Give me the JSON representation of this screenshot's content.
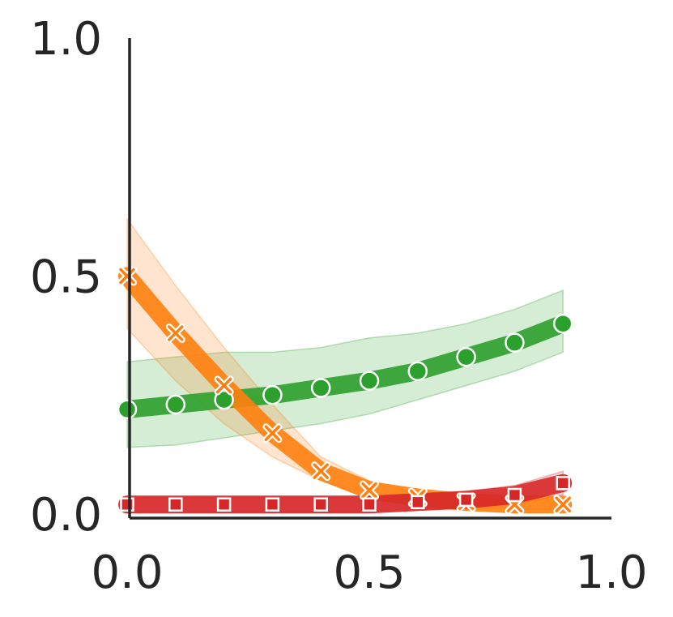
{
  "chart_data": {
    "type": "line",
    "x": [
      0.0,
      0.1,
      0.2,
      0.3,
      0.4,
      0.5,
      0.6,
      0.7,
      0.8,
      0.9
    ],
    "xlim": [
      0.0,
      1.0
    ],
    "ylim": [
      0.0,
      1.0
    ],
    "xticks": [
      "0.0",
      "0.5",
      "1.0"
    ],
    "yticks": [
      "0.0",
      "0.5",
      "1.0"
    ],
    "grid": false,
    "series": [
      {
        "color": "#ff7f0e",
        "marker": "x",
        "values": [
          0.5,
          0.38,
          0.27,
          0.17,
          0.09,
          0.05,
          0.035,
          0.025,
          0.02,
          0.02
        ],
        "lower": [
          0.39,
          0.28,
          0.19,
          0.12,
          0.07,
          0.035,
          0.025,
          0.015,
          0.01,
          0.01
        ],
        "upper": [
          0.62,
          0.48,
          0.35,
          0.23,
          0.12,
          0.07,
          0.045,
          0.035,
          0.03,
          0.03
        ]
      },
      {
        "color": "#2ca02c",
        "marker": "circle",
        "values": [
          0.22,
          0.23,
          0.24,
          0.25,
          0.265,
          0.28,
          0.3,
          0.33,
          0.36,
          0.4
        ],
        "lower": [
          0.14,
          0.145,
          0.16,
          0.175,
          0.19,
          0.21,
          0.24,
          0.27,
          0.3,
          0.34
        ],
        "upper": [
          0.32,
          0.33,
          0.34,
          0.34,
          0.35,
          0.37,
          0.38,
          0.4,
          0.43,
          0.47
        ]
      },
      {
        "color": "#d62728",
        "marker": "square",
        "values": [
          0.02,
          0.02,
          0.02,
          0.02,
          0.02,
          0.02,
          0.025,
          0.03,
          0.04,
          0.065
        ],
        "lower": [
          0.005,
          0.005,
          0.005,
          0.005,
          0.005,
          0.005,
          0.01,
          0.012,
          0.02,
          0.04
        ],
        "upper": [
          0.035,
          0.035,
          0.035,
          0.035,
          0.035,
          0.035,
          0.04,
          0.048,
          0.06,
          0.09
        ]
      }
    ]
  }
}
